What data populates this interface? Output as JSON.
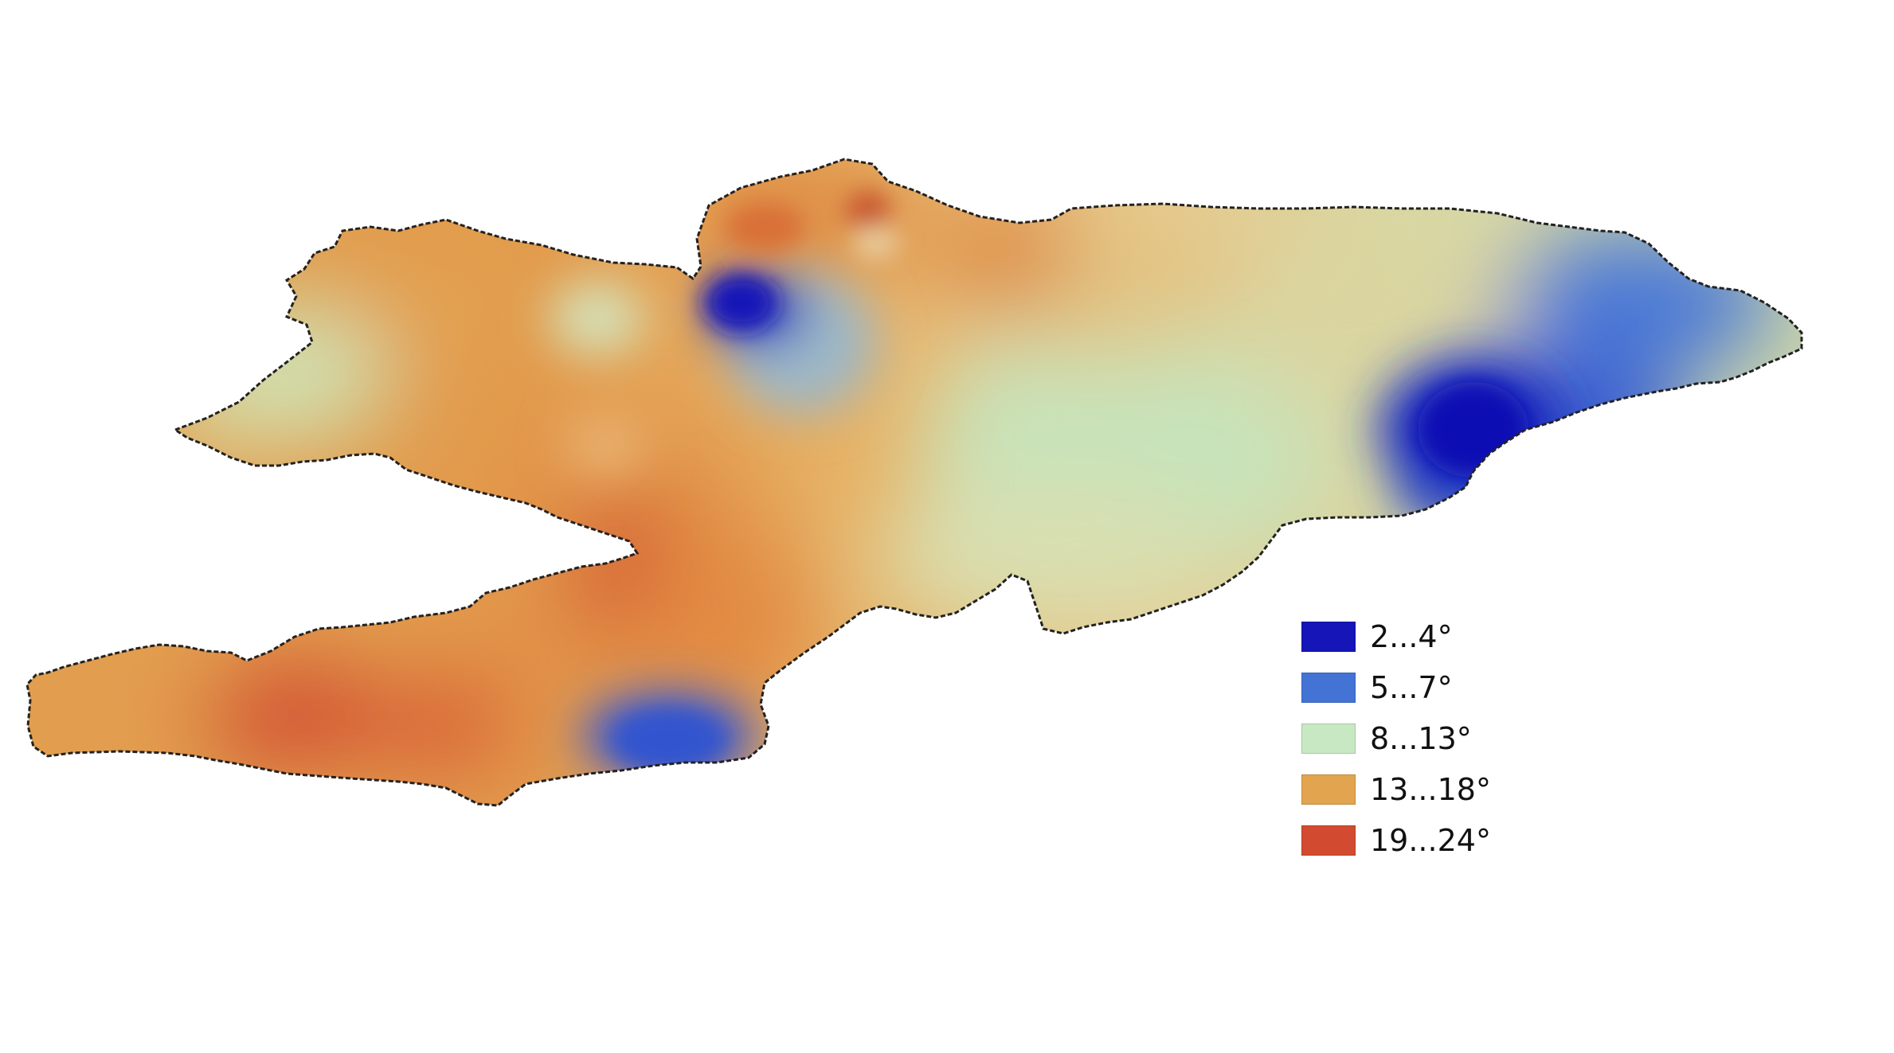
{
  "map": {
    "region_colors": {
      "very_cold": "#1515b8",
      "cold": "#3f6fd6",
      "mild": "#c6e7c0",
      "warm": "#e3a24f",
      "hot": "#d4502f",
      "outline": "#222222"
    }
  },
  "legend": {
    "items": [
      {
        "label": "2...4°",
        "color": "#1515b8",
        "icon": "legend-swatch"
      },
      {
        "label": "5...7°",
        "color": "#4473d6",
        "icon": "legend-swatch"
      },
      {
        "label": "8...13°",
        "color": "#c8e8c3",
        "icon": "legend-swatch"
      },
      {
        "label": "13...18°",
        "color": "#e2a44f",
        "icon": "legend-swatch"
      },
      {
        "label": "19...24°",
        "color": "#d24b30",
        "icon": "legend-swatch"
      }
    ]
  }
}
